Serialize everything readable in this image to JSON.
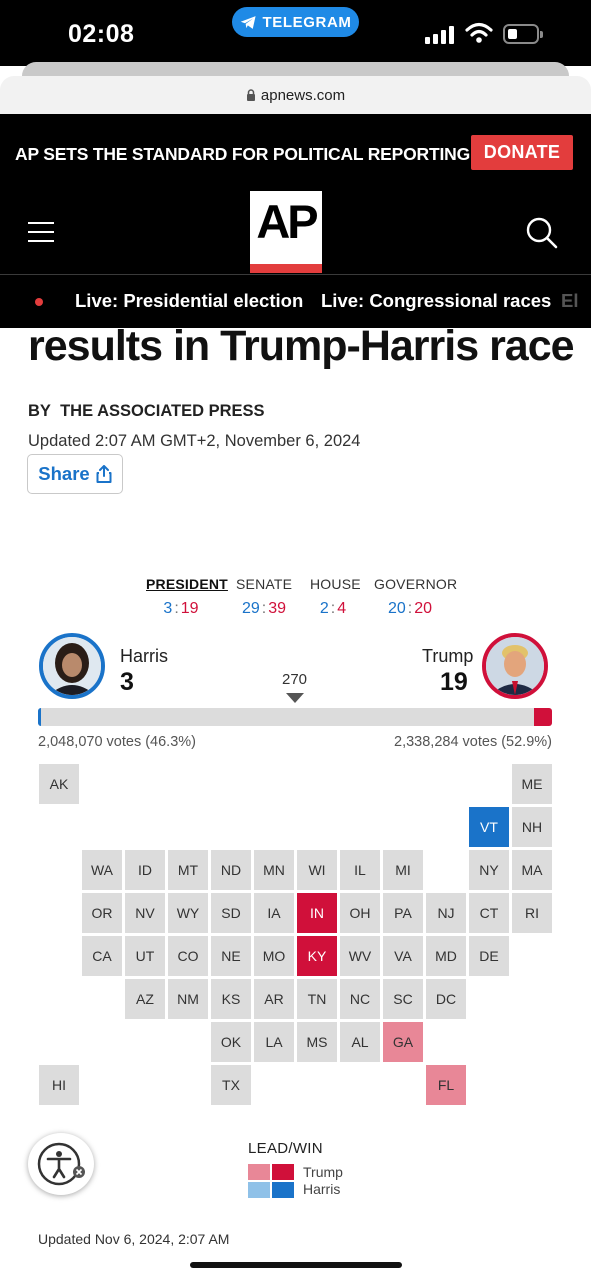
{
  "status_bar": {
    "time": "02:08",
    "back_app": "TELEGRAM"
  },
  "browser": {
    "url": "apnews.com"
  },
  "site_header": {
    "promo_text": "AP SETS THE STANDARD FOR POLITICAL REPORTING.",
    "donate_label": "DONATE",
    "logo_text": "AP",
    "live_links": [
      "Live: Presidential election",
      "Live: Congressional races",
      "El"
    ]
  },
  "article": {
    "headline_fragment": "results in Trump-Harris race",
    "byline_prefix": "BY",
    "byline_author": "THE ASSOCIATED PRESS",
    "updated": "Updated 2:07 AM GMT+2, November 6, 2024",
    "share_label": "Share"
  },
  "results": {
    "race_tabs": [
      {
        "label": "PRESIDENT",
        "dem": "3",
        "rep": "19",
        "active": true
      },
      {
        "label": "SENATE",
        "dem": "29",
        "rep": "39",
        "active": false
      },
      {
        "label": "HOUSE",
        "dem": "2",
        "rep": "4",
        "active": false
      },
      {
        "label": "GOVERNOR",
        "dem": "20",
        "rep": "20",
        "active": false
      }
    ],
    "score_separator": ":",
    "harris": {
      "name": "Harris",
      "ev": "3",
      "votes": "2,048,070 votes (46.3%)"
    },
    "trump": {
      "name": "Trump",
      "ev": "19",
      "votes": "2,338,284 votes (52.9%)"
    },
    "threshold": "270",
    "total_ev": 538,
    "colors": {
      "dem_win": "#1a73c9",
      "rep_win": "#d0103a",
      "rep_lead": "#e88797",
      "dem_lead": "#8fc1e8",
      "no_result": "#dcdcdc"
    },
    "states": [
      {
        "abbr": "AK",
        "status": "none"
      },
      {
        "abbr": "ME",
        "status": "none"
      },
      {
        "abbr": "VT",
        "status": "dem_win"
      },
      {
        "abbr": "NH",
        "status": "none"
      },
      {
        "abbr": "WA",
        "status": "none"
      },
      {
        "abbr": "ID",
        "status": "none"
      },
      {
        "abbr": "MT",
        "status": "none"
      },
      {
        "abbr": "ND",
        "status": "none"
      },
      {
        "abbr": "MN",
        "status": "none"
      },
      {
        "abbr": "WI",
        "status": "none"
      },
      {
        "abbr": "IL",
        "status": "none"
      },
      {
        "abbr": "MI",
        "status": "none"
      },
      {
        "abbr": "NY",
        "status": "none"
      },
      {
        "abbr": "MA",
        "status": "none"
      },
      {
        "abbr": "OR",
        "status": "none"
      },
      {
        "abbr": "NV",
        "status": "none"
      },
      {
        "abbr": "WY",
        "status": "none"
      },
      {
        "abbr": "SD",
        "status": "none"
      },
      {
        "abbr": "IA",
        "status": "none"
      },
      {
        "abbr": "IN",
        "status": "rep_win"
      },
      {
        "abbr": "OH",
        "status": "none"
      },
      {
        "abbr": "PA",
        "status": "none"
      },
      {
        "abbr": "NJ",
        "status": "none"
      },
      {
        "abbr": "CT",
        "status": "none"
      },
      {
        "abbr": "RI",
        "status": "none"
      },
      {
        "abbr": "CA",
        "status": "none"
      },
      {
        "abbr": "UT",
        "status": "none"
      },
      {
        "abbr": "CO",
        "status": "none"
      },
      {
        "abbr": "NE",
        "status": "none"
      },
      {
        "abbr": "MO",
        "status": "none"
      },
      {
        "abbr": "KY",
        "status": "rep_win"
      },
      {
        "abbr": "WV",
        "status": "none"
      },
      {
        "abbr": "VA",
        "status": "none"
      },
      {
        "abbr": "MD",
        "status": "none"
      },
      {
        "abbr": "DE",
        "status": "none"
      },
      {
        "abbr": "AZ",
        "status": "none"
      },
      {
        "abbr": "NM",
        "status": "none"
      },
      {
        "abbr": "KS",
        "status": "none"
      },
      {
        "abbr": "AR",
        "status": "none"
      },
      {
        "abbr": "TN",
        "status": "none"
      },
      {
        "abbr": "NC",
        "status": "none"
      },
      {
        "abbr": "SC",
        "status": "none"
      },
      {
        "abbr": "DC",
        "status": "none"
      },
      {
        "abbr": "OK",
        "status": "none"
      },
      {
        "abbr": "LA",
        "status": "none"
      },
      {
        "abbr": "MS",
        "status": "none"
      },
      {
        "abbr": "AL",
        "status": "none"
      },
      {
        "abbr": "GA",
        "status": "rep_lead"
      },
      {
        "abbr": "HI",
        "status": "none"
      },
      {
        "abbr": "TX",
        "status": "none"
      },
      {
        "abbr": "FL",
        "status": "rep_lead"
      }
    ],
    "legend": {
      "title": "LEAD/WIN",
      "trump_label": "Trump",
      "harris_label": "Harris"
    },
    "footer_updated": "Updated Nov 6, 2024, 2:07 AM"
  }
}
